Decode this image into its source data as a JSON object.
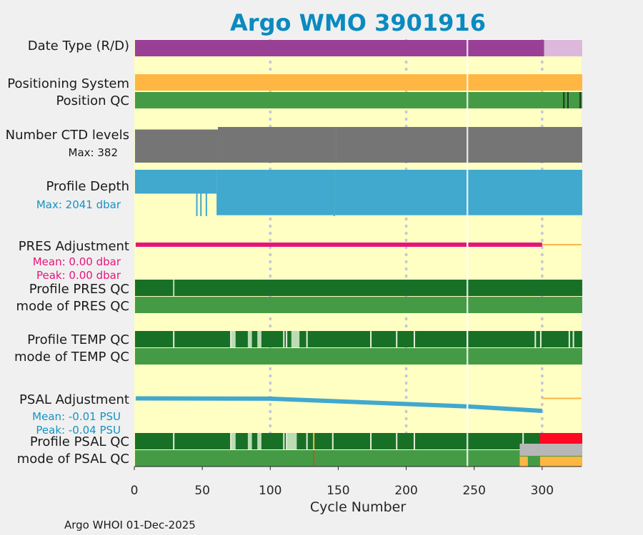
{
  "chart_data": {
    "type": "status-timeline",
    "title": "Argo WMO 3901916",
    "xlabel": "Cycle Number",
    "xlim": [
      0,
      329
    ],
    "xticks": [
      0,
      50,
      100,
      150,
      200,
      250,
      300
    ],
    "footer": "Argo WHOI 01-Dec-2025",
    "colors": {
      "background": "#ffffc4",
      "title": "#0a8ac0",
      "realtime": "#9a3f96",
      "delayed": "#dcb8dc",
      "positioning": "#ffb642",
      "qc_good": "#459b45",
      "qc_dark": "#187026",
      "qc_light": "#bcdcb4",
      "qc_bad": "#ff0822",
      "qc_grey": "#b7b7b7",
      "qc_orange": "#ffb642",
      "qc_line": "#cc4a2e",
      "ctd": "#757575",
      "depth": "#41a8ce",
      "pres_adj": "#e5157a",
      "psal_adj": "#41a8ce",
      "ref_line": "#f5b648",
      "gridline": "#c4c8dc"
    },
    "row_labels": {
      "date_type": "Date Type (R/D)",
      "positioning": "Positioning System",
      "position_qc": "Position QC",
      "ctd_levels": "Number CTD levels",
      "ctd_max": "Max: 382",
      "profile_depth": "Profile Depth",
      "depth_max": "Max: 2041 dbar",
      "pres_adjustment": "PRES Adjustment",
      "pres_mean": "Mean: 0.00 dbar",
      "pres_peak": "Peak: 0.00 dbar",
      "profile_pres_qc": "Profile PRES QC",
      "mode_pres_qc": "mode of PRES QC",
      "profile_temp_qc": "Profile TEMP QC",
      "mode_temp_qc": "mode of TEMP QC",
      "psal_adjustment": "PSAL Adjustment",
      "psal_mean": "Mean: -0.01 PSU",
      "psal_peak": "Peak: -0.04 PSU",
      "profile_psal_qc": "Profile PSAL QC",
      "mode_psal_qc": "mode of PSAL QC"
    },
    "date_type": {
      "realtime_cycles": [
        1,
        301
      ],
      "delayed_cycles": [
        302,
        329
      ]
    },
    "missing_cycles": [
      245
    ],
    "position_qc_marks": [
      316,
      319,
      328
    ],
    "ctd_levels": {
      "max": 382,
      "segments": [
        {
          "from": 1,
          "to": 61,
          "value": 355
        },
        {
          "from": 62,
          "to": 148,
          "value": 382
        },
        {
          "from": 149,
          "to": 329,
          "value": 382
        }
      ]
    },
    "profile_depth": {
      "max_dbar": 2041,
      "segments": [
        {
          "from": 1,
          "to": 60,
          "value": 1050
        },
        {
          "from": 61,
          "to": 147,
          "value": 2000
        },
        {
          "from": 148,
          "to": 329,
          "value": 2000
        }
      ],
      "deep_spikes": [
        46,
        49,
        53,
        147
      ]
    },
    "pres_adjustment": {
      "from": 1,
      "to": 300,
      "value": 0.0,
      "ref_to": 329,
      "gap": 245
    },
    "psal_adjustment": {
      "points": [
        [
          1,
          -0.001
        ],
        [
          100,
          -0.002
        ],
        [
          245,
          -0.026
        ],
        [
          300,
          -0.04
        ]
      ],
      "ref_value": -0.001,
      "ref_to": 329,
      "gap": 245
    },
    "profile_pres_qc": {
      "dark_from": 1,
      "dark_to": 329,
      "marks": [
        29
      ]
    },
    "profile_temp_qc": {
      "white_marks": [
        29,
        71,
        110,
        112,
        127,
        174,
        193,
        206,
        295,
        299,
        320,
        323
      ],
      "light_blocks": [
        [
          72,
          74
        ],
        [
          84,
          86
        ],
        [
          91,
          93
        ],
        [
          116,
          121
        ],
        [
          245,
          245
        ]
      ]
    },
    "profile_psal_qc": {
      "white_marks": [
        29,
        71,
        110,
        112,
        127,
        146,
        174,
        193,
        206,
        286
      ],
      "light_blocks": [
        [
          72,
          74
        ],
        [
          84,
          86
        ],
        [
          91,
          93
        ],
        [
          113,
          119
        ]
      ],
      "orange_mark": 132,
      "red_from": 299,
      "red_to": 329
    },
    "mode_psal_qc": {
      "grey_from": 284,
      "grey_to": 329,
      "orange_blocks": [
        [
          284,
          289
        ],
        [
          299,
          329
        ]
      ],
      "red_mark": 132
    }
  }
}
